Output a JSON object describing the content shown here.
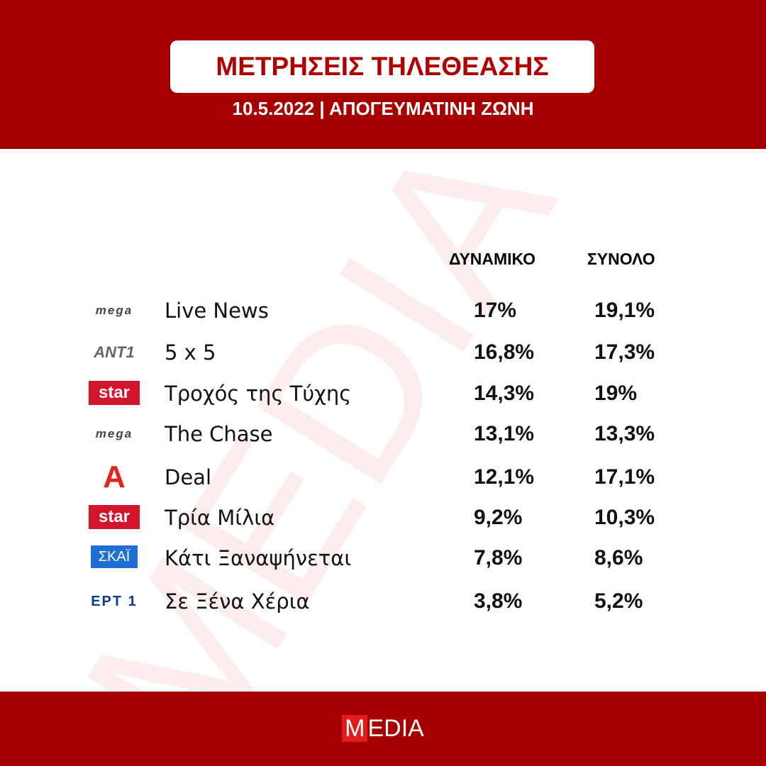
{
  "header": {
    "title": "ΜΕΤΡΗΣΕΙΣ ΤΗΛΕΘΕΑΣΗΣ",
    "subtitle": "10.5.2022 | ΑΠΟΓΕΥΜΑΤΙΝΗ ΖΩΝΗ"
  },
  "watermark": "MEDIA",
  "table": {
    "columns": [
      "ΔΥΝΑΜΙΚΟ",
      "ΣΥΝΟΛΟ"
    ],
    "rows": [
      {
        "channel": "mega",
        "show": "Live News",
        "potential": "17%",
        "total": "19,1%"
      },
      {
        "channel": "ANT1",
        "show": "5 x 5",
        "potential": "16,8%",
        "total": "17,3%"
      },
      {
        "channel": "star",
        "show": "Τροχός της Τύχης",
        "potential": "14,3%",
        "total": "19%"
      },
      {
        "channel": "mega",
        "show": "The Chase",
        "potential": "13,1%",
        "total": "13,3%"
      },
      {
        "channel": "A",
        "show": "Deal",
        "potential": "12,1%",
        "total": "17,1%"
      },
      {
        "channel": "star",
        "show": "Τρία Μίλια",
        "potential": "9,2%",
        "total": "10,3%"
      },
      {
        "channel": "ΣΚΑΪ",
        "show": "Κάτι Ξαναψήνεται",
        "potential": "7,8%",
        "total": "8,6%"
      },
      {
        "channel": "ΕΡΤ 1",
        "show": "Σε Ξένα Χέρια",
        "potential": "3,8%",
        "total": "5,2%"
      }
    ]
  },
  "footer": {
    "logo_first": "M",
    "logo_rest": "EDIA"
  }
}
